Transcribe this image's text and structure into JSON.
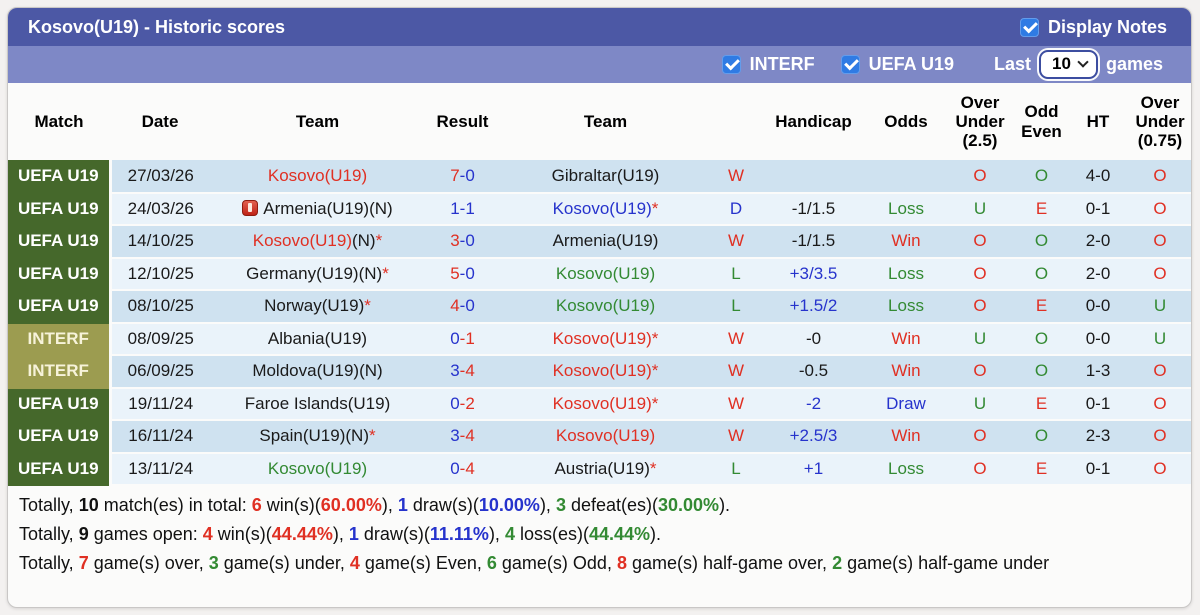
{
  "colors": {
    "title_bar": "#4c58a5",
    "filter_bar": "#7e88c6",
    "checkbox": "#2f7be4",
    "badge_uefa": "#45682b",
    "badge_interf": "#9c9c50",
    "row_odd": "#cfe2f0",
    "row_even": "#eaf3fa",
    "red": "#e03023",
    "blue": "#2633cc",
    "green": "#338a33",
    "black": "#1a1a1a"
  },
  "title_bar": {
    "title": "Kosovo(U19) - Historic scores",
    "display_notes": {
      "label": "Display Notes",
      "checked": true
    }
  },
  "filter_bar": {
    "interf": {
      "label": "INTERF",
      "checked": true
    },
    "uefa": {
      "label": "UEFA U19",
      "checked": true
    },
    "last_label": "Last",
    "select_value": "10",
    "games_label": "games"
  },
  "table": {
    "columns": [
      "Match",
      "Date",
      "Team",
      "Result",
      "Team",
      "",
      "Handicap",
      "Odds",
      "Over\nUnder\n(2.5)",
      "Odd\nEven",
      "HT",
      "Over\nUnder\n(0.75)"
    ],
    "rows": [
      {
        "league": "UEFA U19",
        "lc": "uefa",
        "date": "27/03/26",
        "home": [
          {
            "t": "Kosovo(U19)",
            "c": "red"
          }
        ],
        "score": {
          "h": "7",
          "hc": "red",
          "a": "-0",
          "ac": "blue"
        },
        "away": [
          {
            "t": "Gibraltar(U19)"
          }
        ],
        "wdl": {
          "t": "W",
          "c": "red"
        },
        "handicap": {
          "t": ""
        },
        "odds": {
          "t": ""
        },
        "ou25": {
          "t": "O",
          "c": "red"
        },
        "oe": {
          "t": "O",
          "c": "green"
        },
        "ht": "4-0",
        "ou075": {
          "t": "O",
          "c": "red"
        }
      },
      {
        "league": "UEFA U19",
        "lc": "uefa",
        "date": "24/03/26",
        "home": [
          {
            "icon": "red-card"
          },
          {
            "t": "Armenia(U19)(N)"
          }
        ],
        "score": {
          "h": "1",
          "hc": "blue",
          "a": "-1",
          "ac": "blue"
        },
        "away": [
          {
            "t": "Kosovo(U19)",
            "c": "blue"
          },
          {
            "t": "*",
            "c": "red"
          }
        ],
        "wdl": {
          "t": "D",
          "c": "blue"
        },
        "handicap": {
          "t": "-1/1.5"
        },
        "odds": {
          "t": "Loss",
          "c": "green"
        },
        "ou25": {
          "t": "U",
          "c": "green"
        },
        "oe": {
          "t": "E",
          "c": "red"
        },
        "ht": "0-1",
        "ou075": {
          "t": "O",
          "c": "red"
        }
      },
      {
        "league": "UEFA U19",
        "lc": "uefa",
        "date": "14/10/25",
        "home": [
          {
            "t": "Kosovo(U19)",
            "c": "red"
          },
          {
            "t": "(N)"
          },
          {
            "t": "*",
            "c": "red"
          }
        ],
        "score": {
          "h": "3",
          "hc": "red",
          "a": "-0",
          "ac": "blue"
        },
        "away": [
          {
            "t": "Armenia(U19)"
          }
        ],
        "wdl": {
          "t": "W",
          "c": "red"
        },
        "handicap": {
          "t": "-1/1.5"
        },
        "odds": {
          "t": "Win",
          "c": "red"
        },
        "ou25": {
          "t": "O",
          "c": "red"
        },
        "oe": {
          "t": "O",
          "c": "green"
        },
        "ht": "2-0",
        "ou075": {
          "t": "O",
          "c": "red"
        }
      },
      {
        "league": "UEFA U19",
        "lc": "uefa",
        "date": "12/10/25",
        "home": [
          {
            "t": "Germany(U19)(N)"
          },
          {
            "t": "*",
            "c": "red"
          }
        ],
        "score": {
          "h": "5",
          "hc": "red",
          "a": "-0",
          "ac": "blue"
        },
        "away": [
          {
            "t": "Kosovo(U19)",
            "c": "green"
          }
        ],
        "wdl": {
          "t": "L",
          "c": "green"
        },
        "handicap": {
          "t": "+3/3.5",
          "c": "blue"
        },
        "odds": {
          "t": "Loss",
          "c": "green"
        },
        "ou25": {
          "t": "O",
          "c": "red"
        },
        "oe": {
          "t": "O",
          "c": "green"
        },
        "ht": "2-0",
        "ou075": {
          "t": "O",
          "c": "red"
        }
      },
      {
        "league": "UEFA U19",
        "lc": "uefa",
        "date": "08/10/25",
        "home": [
          {
            "t": "Norway(U19)"
          },
          {
            "t": "*",
            "c": "red"
          }
        ],
        "score": {
          "h": "4",
          "hc": "red",
          "a": "-0",
          "ac": "blue"
        },
        "away": [
          {
            "t": "Kosovo(U19)",
            "c": "green"
          }
        ],
        "wdl": {
          "t": "L",
          "c": "green"
        },
        "handicap": {
          "t": "+1.5/2",
          "c": "blue"
        },
        "odds": {
          "t": "Loss",
          "c": "green"
        },
        "ou25": {
          "t": "O",
          "c": "red"
        },
        "oe": {
          "t": "E",
          "c": "red"
        },
        "ht": "0-0",
        "ou075": {
          "t": "U",
          "c": "green"
        }
      },
      {
        "league": "INTERF",
        "lc": "interf",
        "date": "08/09/25",
        "home": [
          {
            "t": "Albania(U19)"
          }
        ],
        "score": {
          "h": "0",
          "hc": "blue",
          "a": "-1",
          "ac": "red"
        },
        "away": [
          {
            "t": "Kosovo(U19)",
            "c": "red"
          },
          {
            "t": "*",
            "c": "red"
          }
        ],
        "wdl": {
          "t": "W",
          "c": "red"
        },
        "handicap": {
          "t": "-0"
        },
        "odds": {
          "t": "Win",
          "c": "red"
        },
        "ou25": {
          "t": "U",
          "c": "green"
        },
        "oe": {
          "t": "O",
          "c": "green"
        },
        "ht": "0-0",
        "ou075": {
          "t": "U",
          "c": "green"
        }
      },
      {
        "league": "INTERF",
        "lc": "interf",
        "date": "06/09/25",
        "home": [
          {
            "t": "Moldova(U19)(N)"
          }
        ],
        "score": {
          "h": "3",
          "hc": "blue",
          "a": "-4",
          "ac": "red"
        },
        "away": [
          {
            "t": "Kosovo(U19)",
            "c": "red"
          },
          {
            "t": "*",
            "c": "red"
          }
        ],
        "wdl": {
          "t": "W",
          "c": "red"
        },
        "handicap": {
          "t": "-0.5"
        },
        "odds": {
          "t": "Win",
          "c": "red"
        },
        "ou25": {
          "t": "O",
          "c": "red"
        },
        "oe": {
          "t": "O",
          "c": "green"
        },
        "ht": "1-3",
        "ou075": {
          "t": "O",
          "c": "red"
        }
      },
      {
        "league": "UEFA U19",
        "lc": "uefa",
        "date": "19/11/24",
        "home": [
          {
            "t": "Faroe Islands(U19)"
          }
        ],
        "score": {
          "h": "0",
          "hc": "blue",
          "a": "-2",
          "ac": "red"
        },
        "away": [
          {
            "t": "Kosovo(U19)",
            "c": "red"
          },
          {
            "t": "*",
            "c": "red"
          }
        ],
        "wdl": {
          "t": "W",
          "c": "red"
        },
        "handicap": {
          "t": "-2",
          "c": "blue"
        },
        "odds": {
          "t": "Draw",
          "c": "blue"
        },
        "ou25": {
          "t": "U",
          "c": "green"
        },
        "oe": {
          "t": "E",
          "c": "red"
        },
        "ht": "0-1",
        "ou075": {
          "t": "O",
          "c": "red"
        }
      },
      {
        "league": "UEFA U19",
        "lc": "uefa",
        "date": "16/11/24",
        "home": [
          {
            "t": "Spain(U19)(N)"
          },
          {
            "t": "*",
            "c": "red"
          }
        ],
        "score": {
          "h": "3",
          "hc": "blue",
          "a": "-4",
          "ac": "red"
        },
        "away": [
          {
            "t": "Kosovo(U19)",
            "c": "red"
          }
        ],
        "wdl": {
          "t": "W",
          "c": "red"
        },
        "handicap": {
          "t": "+2.5/3",
          "c": "blue"
        },
        "odds": {
          "t": "Win",
          "c": "red"
        },
        "ou25": {
          "t": "O",
          "c": "red"
        },
        "oe": {
          "t": "O",
          "c": "green"
        },
        "ht": "2-3",
        "ou075": {
          "t": "O",
          "c": "red"
        }
      },
      {
        "league": "UEFA U19",
        "lc": "uefa",
        "date": "13/11/24",
        "home": [
          {
            "t": "Kosovo(U19)",
            "c": "green"
          }
        ],
        "score": {
          "h": "0",
          "hc": "blue",
          "a": "-4",
          "ac": "red"
        },
        "away": [
          {
            "t": "Austria(U19)"
          },
          {
            "t": "*",
            "c": "red"
          }
        ],
        "wdl": {
          "t": "L",
          "c": "green"
        },
        "handicap": {
          "t": "+1",
          "c": "blue"
        },
        "odds": {
          "t": "Loss",
          "c": "green"
        },
        "ou25": {
          "t": "O",
          "c": "red"
        },
        "oe": {
          "t": "E",
          "c": "red"
        },
        "ht": "0-1",
        "ou075": {
          "t": "O",
          "c": "red"
        }
      }
    ]
  },
  "summary": {
    "lines": [
      {
        "parts": [
          {
            "t": "Totally, "
          },
          {
            "t": "10",
            "b": 1
          },
          {
            "t": " match(es) in total: "
          },
          {
            "t": "6",
            "c": "red",
            "b": 1
          },
          {
            "t": " win(s)("
          },
          {
            "t": "60.00%",
            "c": "red",
            "b": 1
          },
          {
            "t": "), "
          },
          {
            "t": "1",
            "c": "blue",
            "b": 1
          },
          {
            "t": " draw(s)("
          },
          {
            "t": "10.00%",
            "c": "blue",
            "b": 1
          },
          {
            "t": "), "
          },
          {
            "t": "3",
            "c": "green",
            "b": 1
          },
          {
            "t": " defeat(es)("
          },
          {
            "t": "30.00%",
            "c": "green",
            "b": 1
          },
          {
            "t": ")."
          }
        ]
      },
      {
        "parts": [
          {
            "t": "Totally, "
          },
          {
            "t": "9",
            "b": 1
          },
          {
            "t": " games open: "
          },
          {
            "t": "4",
            "c": "red",
            "b": 1
          },
          {
            "t": " win(s)("
          },
          {
            "t": "44.44%",
            "c": "red",
            "b": 1
          },
          {
            "t": "), "
          },
          {
            "t": "1",
            "c": "blue",
            "b": 1
          },
          {
            "t": " draw(s)("
          },
          {
            "t": "11.11%",
            "c": "blue",
            "b": 1
          },
          {
            "t": "), "
          },
          {
            "t": "4",
            "c": "green",
            "b": 1
          },
          {
            "t": " loss(es)("
          },
          {
            "t": "44.44%",
            "c": "green",
            "b": 1
          },
          {
            "t": ")."
          }
        ]
      },
      {
        "parts": [
          {
            "t": "Totally, "
          },
          {
            "t": "7",
            "c": "red",
            "b": 1
          },
          {
            "t": " game(s) over, "
          },
          {
            "t": "3",
            "c": "green",
            "b": 1
          },
          {
            "t": " game(s) under, "
          },
          {
            "t": "4",
            "c": "red",
            "b": 1
          },
          {
            "t": " game(s) Even, "
          },
          {
            "t": "6",
            "c": "green",
            "b": 1
          },
          {
            "t": " game(s) Odd, "
          },
          {
            "t": "8",
            "c": "red",
            "b": 1
          },
          {
            "t": " game(s) half-game over, "
          },
          {
            "t": "2",
            "c": "green",
            "b": 1
          },
          {
            "t": " game(s) half-game under"
          }
        ]
      }
    ]
  }
}
